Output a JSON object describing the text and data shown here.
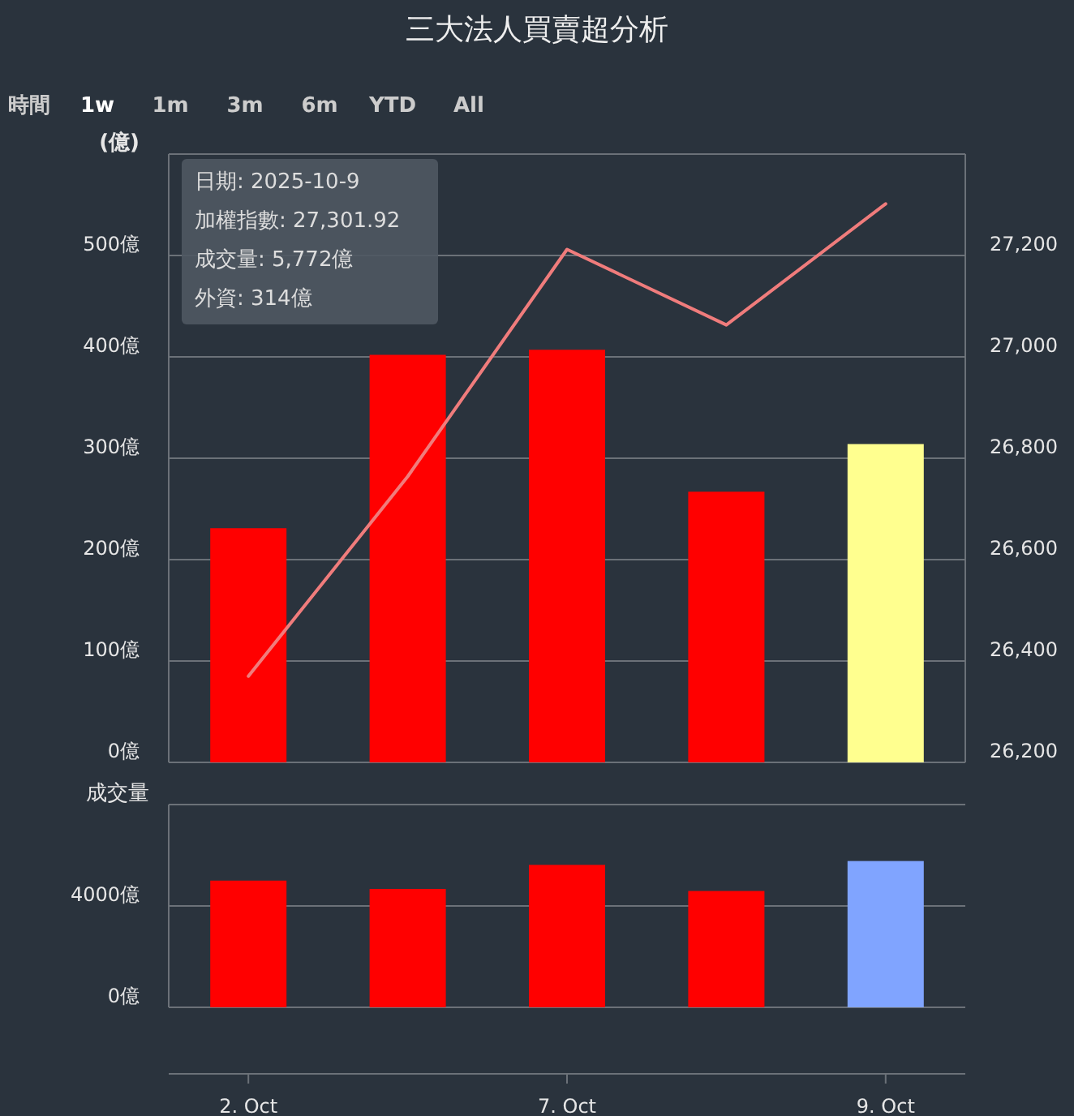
{
  "chart_data": [
    {
      "type": "bar",
      "title": "三大法人買賣超分析",
      "ylabel": "(億)",
      "annotations": [
        "時間",
        "1w",
        "1m",
        "3m",
        "6m",
        "YTD",
        "All",
        "日期: 2025-10-9",
        "加權指數: 27,301.92",
        "成交量: 5,772億",
        "外資: 314億"
      ],
      "categories": [
        null,
        null,
        null,
        null,
        null
      ],
      "series": [
        {
          "colors": [
            "#ff0000",
            "#ff0000",
            "#ff0000",
            "#ff0000",
            "#ffff8f"
          ],
          "values": [
            231,
            402,
            407,
            267,
            314
          ]
        },
        {
          "type": "line",
          "axis": "y2",
          "color": "#f07c7c",
          "values": [
            26370,
            26764,
            27212,
            27063,
            27301.92
          ]
        }
      ],
      "ylim": [
        0,
        600
      ],
      "yticks": [
        {
          "value": 0,
          "label": "0億"
        },
        {
          "value": 100,
          "label": "100億"
        },
        {
          "value": 200,
          "label": "200億"
        },
        {
          "value": 300,
          "label": "300億"
        },
        {
          "value": 400,
          "label": "400億"
        },
        {
          "value": 500,
          "label": "500億"
        },
        {
          "value": 600,
          "label": null
        }
      ],
      "y2lim": [
        26200,
        27400
      ],
      "y2ticks": [
        {
          "value": 26200,
          "label": "26,200"
        },
        {
          "value": 26400,
          "label": "26,400"
        },
        {
          "value": 26600,
          "label": "26,600"
        },
        {
          "value": 26800,
          "label": "26,800"
        },
        {
          "value": 27000,
          "label": "27,000"
        },
        {
          "value": 27200,
          "label": "27,200"
        }
      ],
      "grid": "y",
      "tick_labels": "y"
    },
    {
      "type": "bar",
      "ylabel": "成交量",
      "categories": [
        "2. Oct",
        null,
        "7. Oct",
        null,
        "9. Oct"
      ],
      "colors": [
        "#ff0000",
        "#ff0000",
        "#ff0000",
        "#ff0000",
        "#80a4ff"
      ],
      "values": [
        5000,
        4670,
        5620,
        4590,
        5772
      ],
      "ylim": [
        0,
        8000
      ],
      "yticks": [
        {
          "value": 0,
          "label": "0億"
        },
        {
          "value": 4000,
          "label": "4000億"
        },
        {
          "value": 8000,
          "label": null
        }
      ],
      "grid": "y"
    }
  ]
}
